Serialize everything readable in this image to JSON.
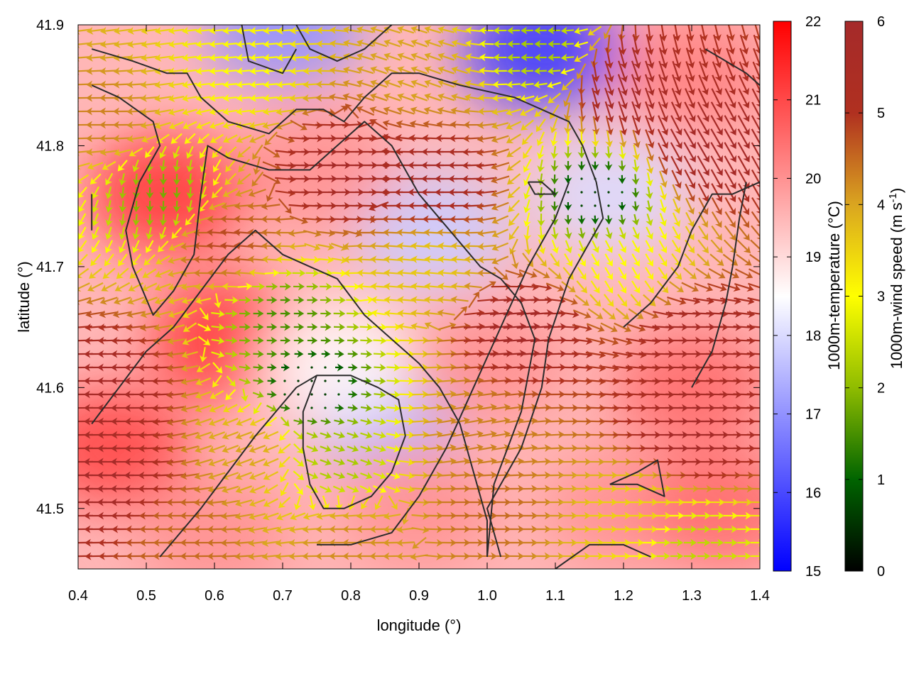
{
  "chart_data": {
    "type": "heatmap",
    "subtype": "scalar field with wind-vector overlay and contour lines",
    "xlabel": "longitude (°)",
    "ylabel": "latitude (°)",
    "xlim": [
      0.4,
      1.4
    ],
    "ylim": [
      41.45,
      41.9
    ],
    "x_ticks": [
      "0.4",
      "0.5",
      "0.6",
      "0.7",
      "0.8",
      "0.9",
      "1.0",
      "1.1",
      "1.2",
      "1.3",
      "1.4"
    ],
    "y_ticks": [
      "41.5",
      "41.6",
      "41.7",
      "41.8",
      "41.9"
    ],
    "grid": false,
    "temperature": {
      "label": "1000m-temperature (°C)",
      "range": [
        15,
        22
      ],
      "ticks": [
        "15",
        "16",
        "17",
        "18",
        "19",
        "20",
        "21",
        "22"
      ],
      "colors": [
        "#0000ff",
        "#ffffff",
        "#ff0000"
      ],
      "regions": [
        {
          "lon": 0.41,
          "lat": 41.89,
          "value": 19.5
        },
        {
          "lon": 0.53,
          "lat": 41.76,
          "value": 21.2
        },
        {
          "lon": 0.45,
          "lat": 41.55,
          "value": 21.0
        },
        {
          "lon": 0.62,
          "lat": 41.64,
          "value": 21.2
        },
        {
          "lon": 0.7,
          "lat": 41.9,
          "value": 17.0
        },
        {
          "lon": 1.08,
          "lat": 41.88,
          "value": 15.8
        },
        {
          "lon": 0.92,
          "lat": 41.73,
          "value": 17.8
        },
        {
          "lon": 1.18,
          "lat": 41.76,
          "value": 18.0
        },
        {
          "lon": 0.85,
          "lat": 41.58,
          "value": 17.5
        },
        {
          "lon": 0.78,
          "lat": 41.62,
          "value": 18.6
        },
        {
          "lon": 1.3,
          "lat": 41.86,
          "value": 20.2
        },
        {
          "lon": 1.3,
          "lat": 41.6,
          "value": 20.5
        },
        {
          "lon": 1.0,
          "lat": 41.62,
          "value": 20.0
        },
        {
          "lon": 1.2,
          "lat": 41.5,
          "value": 20.0
        },
        {
          "lon": 1.35,
          "lat": 41.5,
          "value": 20.5
        },
        {
          "lon": 0.6,
          "lat": 41.48,
          "value": 20.0
        },
        {
          "lon": 0.9,
          "lat": 41.5,
          "value": 20.0
        },
        {
          "lon": 0.75,
          "lat": 41.78,
          "value": 20.0
        }
      ]
    },
    "wind": {
      "label": "1000m-wind speed (m s",
      "label_exp": "-1",
      "label_close": ")",
      "range": [
        0,
        6
      ],
      "ticks": [
        "0",
        "1",
        "2",
        "3",
        "4",
        "5",
        "6"
      ],
      "colors": [
        "#000000",
        "#006400",
        "#8fbc00",
        "#ffff00",
        "#daa520",
        "#b03020",
        "#a52a2a"
      ],
      "regions": [
        {
          "lon": 0.44,
          "lat": 41.82,
          "dir": 180,
          "speed": 4.3
        },
        {
          "lon": 0.52,
          "lat": 41.76,
          "dir": 270,
          "speed": 1.8
        },
        {
          "lon": 0.45,
          "lat": 41.6,
          "dir": 180,
          "speed": 5.8
        },
        {
          "lon": 0.45,
          "lat": 41.52,
          "dir": 180,
          "speed": 5.9
        },
        {
          "lon": 0.65,
          "lat": 41.86,
          "dir": 185,
          "speed": 3.0
        },
        {
          "lon": 0.62,
          "lat": 41.72,
          "dir": 175,
          "speed": 4.8
        },
        {
          "lon": 0.78,
          "lat": 41.78,
          "dir": 0,
          "speed": 5.8
        },
        {
          "lon": 0.7,
          "lat": 41.66,
          "dir": 0,
          "speed": 1.5
        },
        {
          "lon": 0.74,
          "lat": 41.6,
          "dir": 0,
          "speed": 0.5
        },
        {
          "lon": 0.78,
          "lat": 41.54,
          "dir": 340,
          "speed": 2.2
        },
        {
          "lon": 0.65,
          "lat": 41.55,
          "dir": 200,
          "speed": 4.0
        },
        {
          "lon": 0.9,
          "lat": 41.86,
          "dir": 160,
          "speed": 4.0
        },
        {
          "lon": 0.93,
          "lat": 41.77,
          "dir": 180,
          "speed": 5.7
        },
        {
          "lon": 0.92,
          "lat": 41.7,
          "dir": 175,
          "speed": 3.6
        },
        {
          "lon": 1.08,
          "lat": 41.88,
          "dir": 180,
          "speed": 2.2
        },
        {
          "lon": 1.2,
          "lat": 41.85,
          "dir": 290,
          "speed": 5.8
        },
        {
          "lon": 1.32,
          "lat": 41.8,
          "dir": 300,
          "speed": 5.9
        },
        {
          "lon": 1.16,
          "lat": 41.76,
          "dir": 270,
          "speed": 0.6
        },
        {
          "lon": 1.2,
          "lat": 41.7,
          "dir": 300,
          "speed": 3.0
        },
        {
          "lon": 1.05,
          "lat": 41.65,
          "dir": 5,
          "speed": 5.9
        },
        {
          "lon": 1.3,
          "lat": 41.64,
          "dir": 0,
          "speed": 5.7
        },
        {
          "lon": 1.3,
          "lat": 41.56,
          "dir": 0,
          "speed": 5.9
        },
        {
          "lon": 0.98,
          "lat": 41.56,
          "dir": 10,
          "speed": 4.3
        },
        {
          "lon": 1.0,
          "lat": 41.5,
          "dir": 0,
          "speed": 4.5
        },
        {
          "lon": 1.22,
          "lat": 41.5,
          "dir": 0,
          "speed": 3.5
        },
        {
          "lon": 1.3,
          "lat": 41.47,
          "dir": 0,
          "speed": 2.4
        },
        {
          "lon": 0.55,
          "lat": 41.48,
          "dir": 180,
          "speed": 4.5
        },
        {
          "lon": 0.8,
          "lat": 41.47,
          "dir": 180,
          "speed": 4.2
        }
      ]
    },
    "contours": [
      [
        [
          0.42,
          41.88
        ],
        [
          0.48,
          41.87
        ],
        [
          0.53,
          41.86
        ],
        [
          0.56,
          41.86
        ],
        [
          0.58,
          41.84
        ],
        [
          0.62,
          41.82
        ],
        [
          0.68,
          41.81
        ],
        [
          0.72,
          41.83
        ],
        [
          0.76,
          41.83
        ],
        [
          0.79,
          41.82
        ],
        [
          0.82,
          41.84
        ],
        [
          0.86,
          41.86
        ],
        [
          0.9,
          41.86
        ],
        [
          0.96,
          41.85
        ],
        [
          1.04,
          41.84
        ],
        [
          1.12,
          41.82
        ],
        [
          1.14,
          41.8
        ],
        [
          1.16,
          41.77
        ],
        [
          1.17,
          41.74
        ],
        [
          1.15,
          41.72
        ],
        [
          1.12,
          41.69
        ],
        [
          1.09,
          41.64
        ],
        [
          1.08,
          41.6
        ],
        [
          1.05,
          41.55
        ],
        [
          1.0,
          41.5
        ],
        [
          1.02,
          41.46
        ]
      ],
      [
        [
          0.42,
          41.85
        ],
        [
          0.46,
          41.84
        ],
        [
          0.51,
          41.82
        ],
        [
          0.52,
          41.8
        ],
        [
          0.49,
          41.77
        ],
        [
          0.47,
          41.73
        ],
        [
          0.48,
          41.7
        ],
        [
          0.51,
          41.66
        ],
        [
          0.54,
          41.68
        ],
        [
          0.57,
          41.71
        ],
        [
          0.58,
          41.76
        ],
        [
          0.59,
          41.8
        ],
        [
          0.62,
          41.79
        ],
        [
          0.68,
          41.78
        ],
        [
          0.74,
          41.78
        ],
        [
          0.78,
          41.8
        ],
        [
          0.82,
          41.82
        ],
        [
          0.86,
          41.8
        ],
        [
          0.88,
          41.78
        ],
        [
          0.9,
          41.76
        ],
        [
          0.93,
          41.74
        ],
        [
          0.96,
          41.72
        ],
        [
          0.99,
          41.7
        ],
        [
          1.02,
          41.69
        ],
        [
          1.05,
          41.67
        ],
        [
          1.07,
          41.64
        ],
        [
          1.05,
          41.58
        ],
        [
          1.01,
          41.52
        ],
        [
          1.0,
          41.46
        ]
      ],
      [
        [
          0.42,
          41.57
        ],
        [
          0.46,
          41.6
        ],
        [
          0.5,
          41.63
        ],
        [
          0.54,
          41.65
        ],
        [
          0.58,
          41.68
        ],
        [
          0.62,
          41.71
        ],
        [
          0.66,
          41.73
        ],
        [
          0.7,
          41.71
        ],
        [
          0.74,
          41.7
        ],
        [
          0.78,
          41.69
        ],
        [
          0.82,
          41.66
        ],
        [
          0.86,
          41.64
        ],
        [
          0.9,
          41.62
        ],
        [
          0.93,
          41.6
        ],
        [
          0.96,
          41.57
        ],
        [
          0.98,
          41.53
        ],
        [
          1.0,
          41.49
        ],
        [
          1.0,
          41.46
        ]
      ],
      [
        [
          0.52,
          41.46
        ],
        [
          0.55,
          41.48
        ],
        [
          0.58,
          41.5
        ],
        [
          0.62,
          41.53
        ],
        [
          0.66,
          41.56
        ],
        [
          0.69,
          41.58
        ],
        [
          0.72,
          41.6
        ],
        [
          0.75,
          41.61
        ],
        [
          0.8,
          41.61
        ],
        [
          0.84,
          41.6
        ],
        [
          0.87,
          41.59
        ],
        [
          0.88,
          41.56
        ],
        [
          0.86,
          41.53
        ],
        [
          0.83,
          41.51
        ],
        [
          0.79,
          41.5
        ],
        [
          0.76,
          41.5
        ],
        [
          0.74,
          41.52
        ],
        [
          0.73,
          41.55
        ],
        [
          0.73,
          41.58
        ],
        [
          0.75,
          41.61
        ]
      ],
      [
        [
          0.75,
          41.47
        ],
        [
          0.8,
          41.47
        ],
        [
          0.86,
          41.48
        ],
        [
          0.9,
          41.51
        ],
        [
          0.94,
          41.55
        ],
        [
          0.98,
          41.6
        ],
        [
          1.02,
          41.65
        ],
        [
          1.06,
          41.7
        ],
        [
          1.1,
          41.74
        ],
        [
          1.12,
          41.77
        ]
      ],
      [
        [
          1.1,
          41.45
        ],
        [
          1.15,
          41.47
        ],
        [
          1.2,
          41.47
        ],
        [
          1.24,
          41.46
        ]
      ],
      [
        [
          1.18,
          41.52
        ],
        [
          1.22,
          41.53
        ],
        [
          1.25,
          41.54
        ],
        [
          1.26,
          41.51
        ],
        [
          1.22,
          41.52
        ],
        [
          1.18,
          41.52
        ]
      ],
      [
        [
          1.2,
          41.65
        ],
        [
          1.24,
          41.67
        ],
        [
          1.28,
          41.7
        ],
        [
          1.3,
          41.73
        ],
        [
          1.33,
          41.76
        ],
        [
          1.36,
          41.76
        ],
        [
          1.4,
          41.77
        ]
      ],
      [
        [
          1.3,
          41.6
        ],
        [
          1.33,
          41.63
        ],
        [
          1.35,
          41.67
        ],
        [
          1.36,
          41.7
        ],
        [
          1.37,
          41.74
        ],
        [
          1.38,
          41.77
        ]
      ],
      [
        [
          1.32,
          41.88
        ],
        [
          1.35,
          41.87
        ],
        [
          1.38,
          41.86
        ],
        [
          1.4,
          41.85
        ]
      ],
      [
        [
          1.06,
          41.77
        ],
        [
          1.08,
          41.77
        ],
        [
          1.1,
          41.76
        ],
        [
          1.07,
          41.76
        ],
        [
          1.06,
          41.77
        ]
      ],
      [
        [
          0.72,
          41.9
        ],
        [
          0.74,
          41.88
        ],
        [
          0.78,
          41.87
        ],
        [
          0.82,
          41.88
        ],
        [
          0.86,
          41.9
        ]
      ],
      [
        [
          0.64,
          41.9
        ],
        [
          0.65,
          41.87
        ],
        [
          0.7,
          41.86
        ],
        [
          0.72,
          41.88
        ]
      ],
      [
        [
          0.42,
          41.76
        ],
        [
          0.42,
          41.73
        ]
      ]
    ]
  }
}
